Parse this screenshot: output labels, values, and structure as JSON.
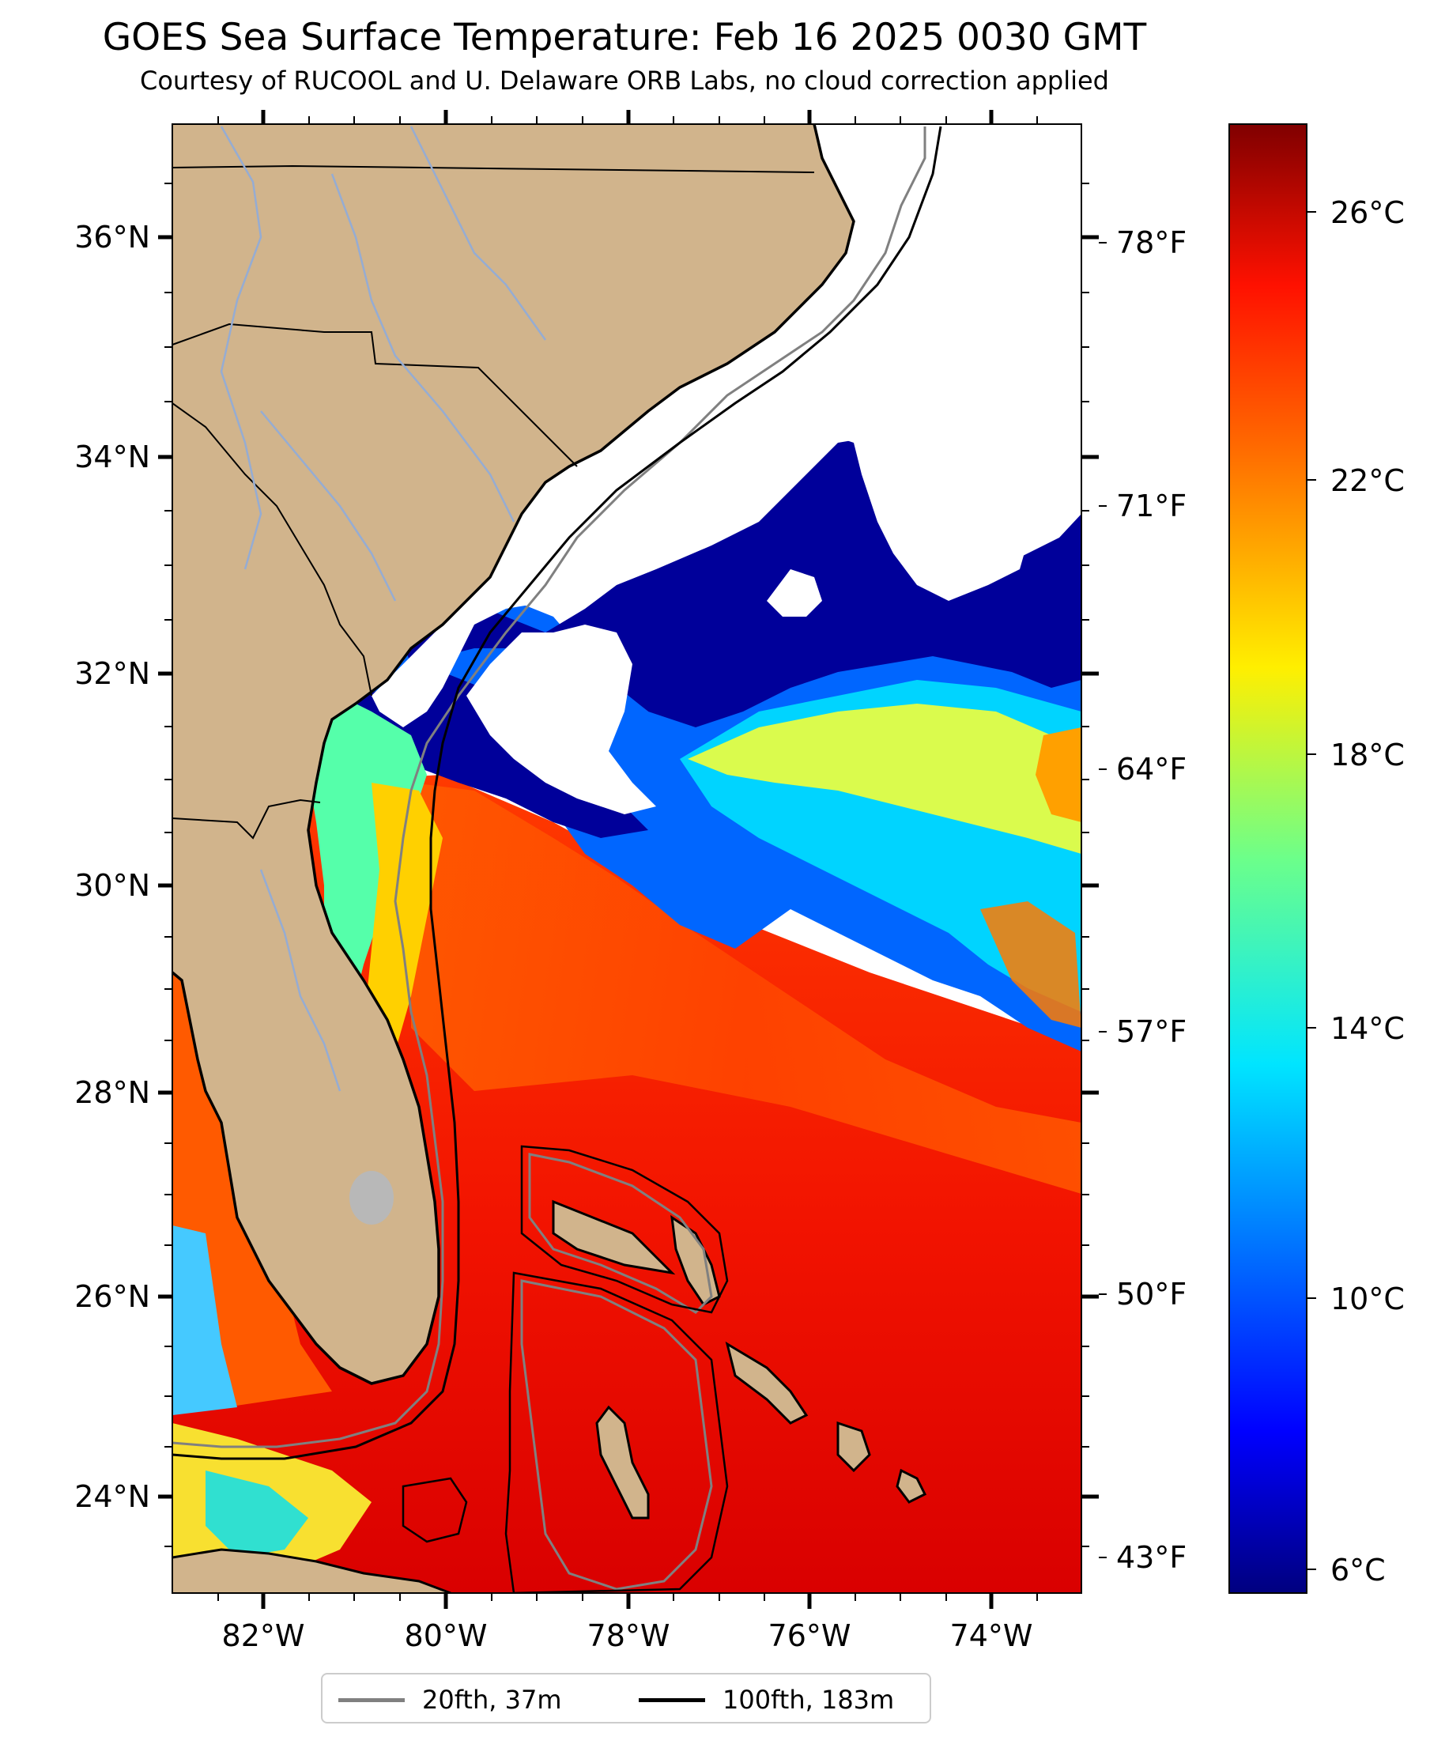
{
  "title": "GOES Sea Surface Temperature: Feb 16 2025 0030 GMT",
  "subtitle": "Courtesy of RUCOOL and U. Delaware ORB Labs, no cloud correction applied",
  "map": {
    "lon_range": [
      -83.0,
      -73.0
    ],
    "lat_range": [
      23.1,
      37.1
    ],
    "lat_ticks": [
      "36°N",
      "34°N",
      "32°N",
      "30°N",
      "28°N",
      "26°N",
      "24°N"
    ],
    "lon_ticks": [
      "82°W",
      "80°W",
      "78°W",
      "76°W",
      "74°W"
    ],
    "f_ticks": [
      "78°F",
      "71°F",
      "64°F",
      "57°F",
      "50°F",
      "43°F"
    ],
    "colors": {
      "land": "#d1b48c",
      "cloud": "#ffffff",
      "rivers": "#95acd3",
      "border": "#000000",
      "contour_20": "#808080",
      "contour_100": "#000000"
    }
  },
  "colorbar": {
    "range_c": [
      5.5,
      27.5
    ],
    "ticks": [
      "26°C",
      "22°C",
      "18°C",
      "14°C",
      "10°C",
      "6°C"
    ],
    "colormap": "jet"
  },
  "legend": {
    "items": [
      {
        "label": "20fth, 37m",
        "color": "#808080"
      },
      {
        "label": "100fth, 183m",
        "color": "#000000"
      }
    ]
  }
}
